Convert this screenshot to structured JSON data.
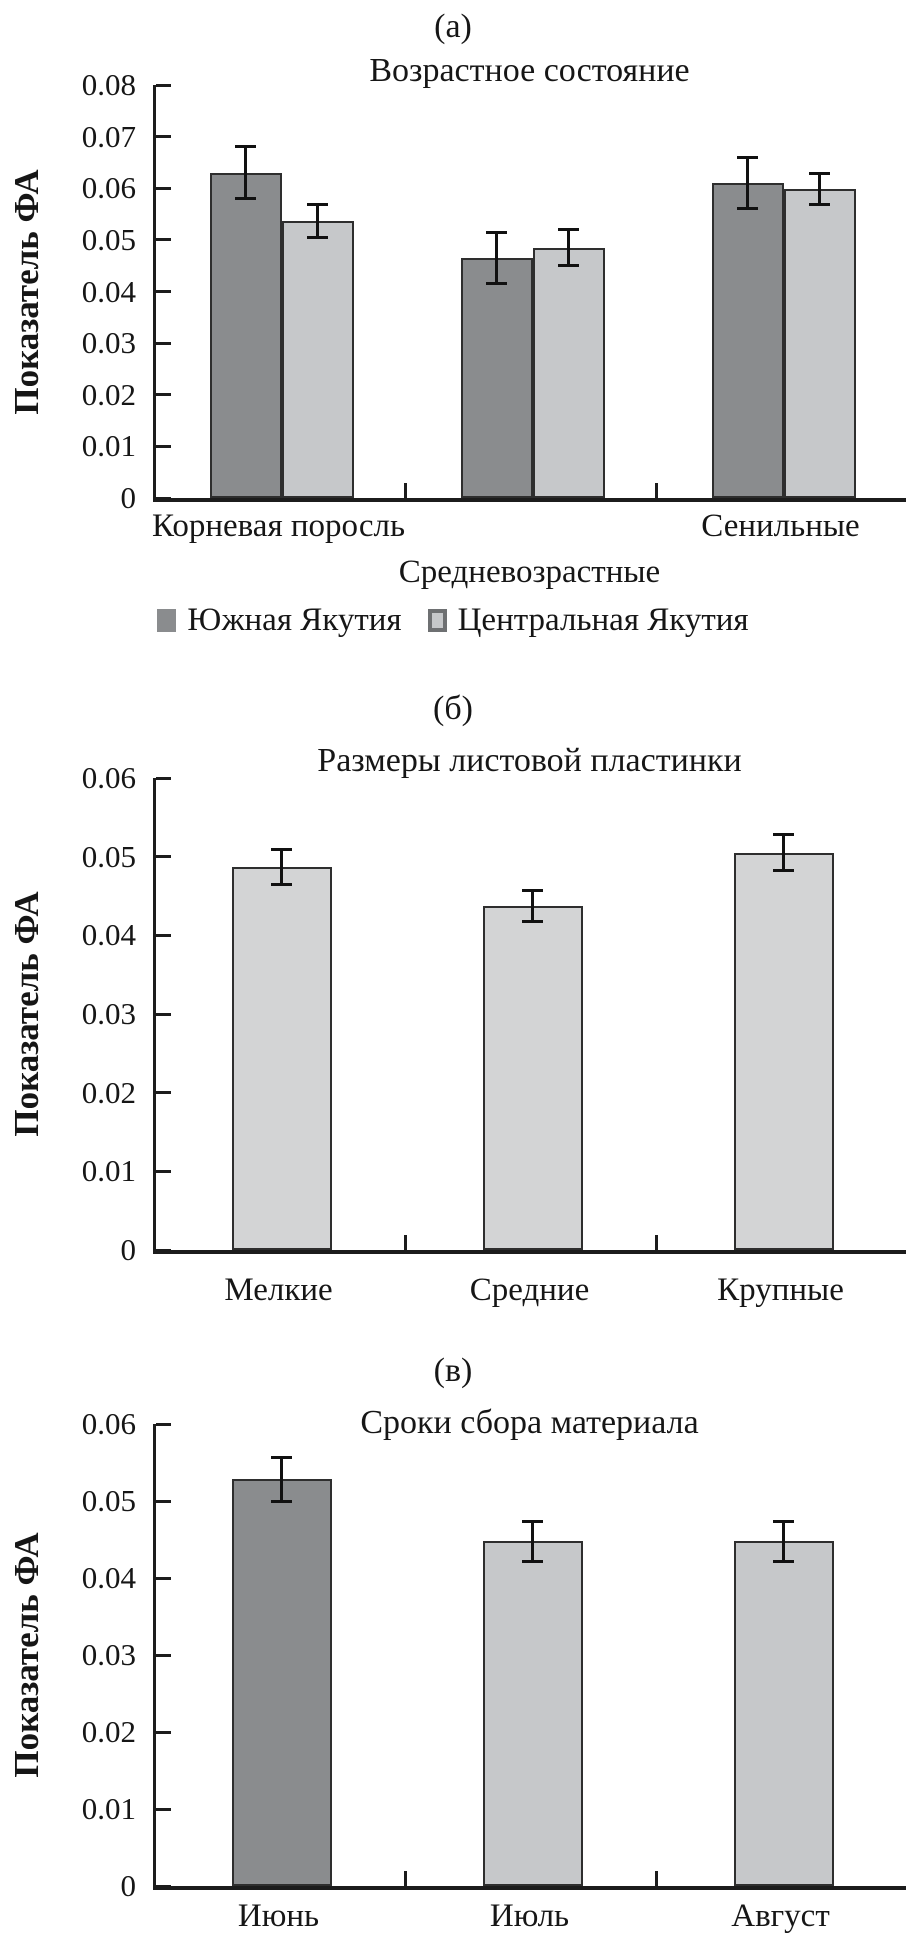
{
  "colors": {
    "dark_bar": "#8a8c8e",
    "light_bar": "#c6c8ca",
    "panel_b_bar": "#d3d4d5",
    "bar_border": "#2e2e2e",
    "axis": "#1c1c1c",
    "text": "#161616",
    "background": "#ffffff",
    "legend_light_border": "#6e7072"
  },
  "chart_data": [
    {
      "type": "bar",
      "panel_label": "(а)",
      "title": "Возрастное состояние",
      "ylabel": "Показатель ФА",
      "xlabel": "",
      "ylim": [
        0,
        0.08
      ],
      "grid": false,
      "legend_position": "bottom",
      "yticks": [
        {
          "v": 0.08,
          "label": "0.08"
        },
        {
          "v": 0.07,
          "label": "0.07"
        },
        {
          "v": 0.06,
          "label": "0.06"
        },
        {
          "v": 0.05,
          "label": "0.05"
        },
        {
          "v": 0.04,
          "label": "0.04"
        },
        {
          "v": 0.03,
          "label": "0.03"
        },
        {
          "v": 0.02,
          "label": "0.02"
        },
        {
          "v": 0.01,
          "label": "0.01"
        },
        {
          "v": 0,
          "label": "0"
        }
      ],
      "categories": [
        "Корневая поросль",
        "Средневозрастные",
        "Сенильные"
      ],
      "category_label_rows": [
        0,
        1,
        0
      ],
      "series": [
        {
          "name": "Южная Якутия",
          "color_key": "dark_bar",
          "values": [
            0.063,
            0.0465,
            0.061
          ],
          "errors": [
            0.005,
            0.005,
            0.005
          ]
        },
        {
          "name": "Центральная Якутия",
          "color_key": "light_bar",
          "values": [
            0.0536,
            0.0485,
            0.0598
          ],
          "errors": [
            0.0032,
            0.0035,
            0.003
          ]
        }
      ]
    },
    {
      "type": "bar",
      "panel_label": "(б)",
      "title": "Размеры листовой пластинки",
      "ylabel": "Показатель ФА",
      "xlabel": "",
      "ylim": [
        0,
        0.06
      ],
      "grid": false,
      "yticks": [
        {
          "v": 0.06,
          "label": "0.06"
        },
        {
          "v": 0.05,
          "label": "0.05"
        },
        {
          "v": 0.04,
          "label": "0.04"
        },
        {
          "v": 0.03,
          "label": "0.03"
        },
        {
          "v": 0.02,
          "label": "0.02"
        },
        {
          "v": 0.01,
          "label": "0.01"
        },
        {
          "v": 0,
          "label": "0"
        }
      ],
      "categories": [
        "Мелкие",
        "Средние",
        "Крупные"
      ],
      "category_label_rows": [
        0,
        0,
        0
      ],
      "series": [
        {
          "color_key": "panel_b_bar",
          "values": [
            0.0487,
            0.0437,
            0.0505
          ],
          "errors": [
            0.0022,
            0.002,
            0.0023
          ]
        }
      ]
    },
    {
      "type": "bar",
      "panel_label": "(в)",
      "title": "Сроки сбора материала",
      "ylabel": "Показатель ФА",
      "xlabel": "",
      "ylim": [
        0,
        0.06
      ],
      "grid": false,
      "yticks": [
        {
          "v": 0.06,
          "label": "0.06"
        },
        {
          "v": 0.05,
          "label": "0.05"
        },
        {
          "v": 0.04,
          "label": "0.04"
        },
        {
          "v": 0.03,
          "label": "0.03"
        },
        {
          "v": 0.02,
          "label": "0.02"
        },
        {
          "v": 0.01,
          "label": "0.01"
        },
        {
          "v": 0,
          "label": "0"
        }
      ],
      "categories": [
        "Июнь",
        "Июль",
        "Август"
      ],
      "category_label_rows": [
        0,
        0,
        0
      ],
      "series": [
        {
          "color_key": "light_bar",
          "bar_color_keys": [
            "dark_bar",
            "light_bar",
            "light_bar"
          ],
          "values": [
            0.0528,
            0.0448,
            0.0448
          ],
          "errors": [
            0.0028,
            0.0026,
            0.0026
          ]
        }
      ]
    }
  ]
}
